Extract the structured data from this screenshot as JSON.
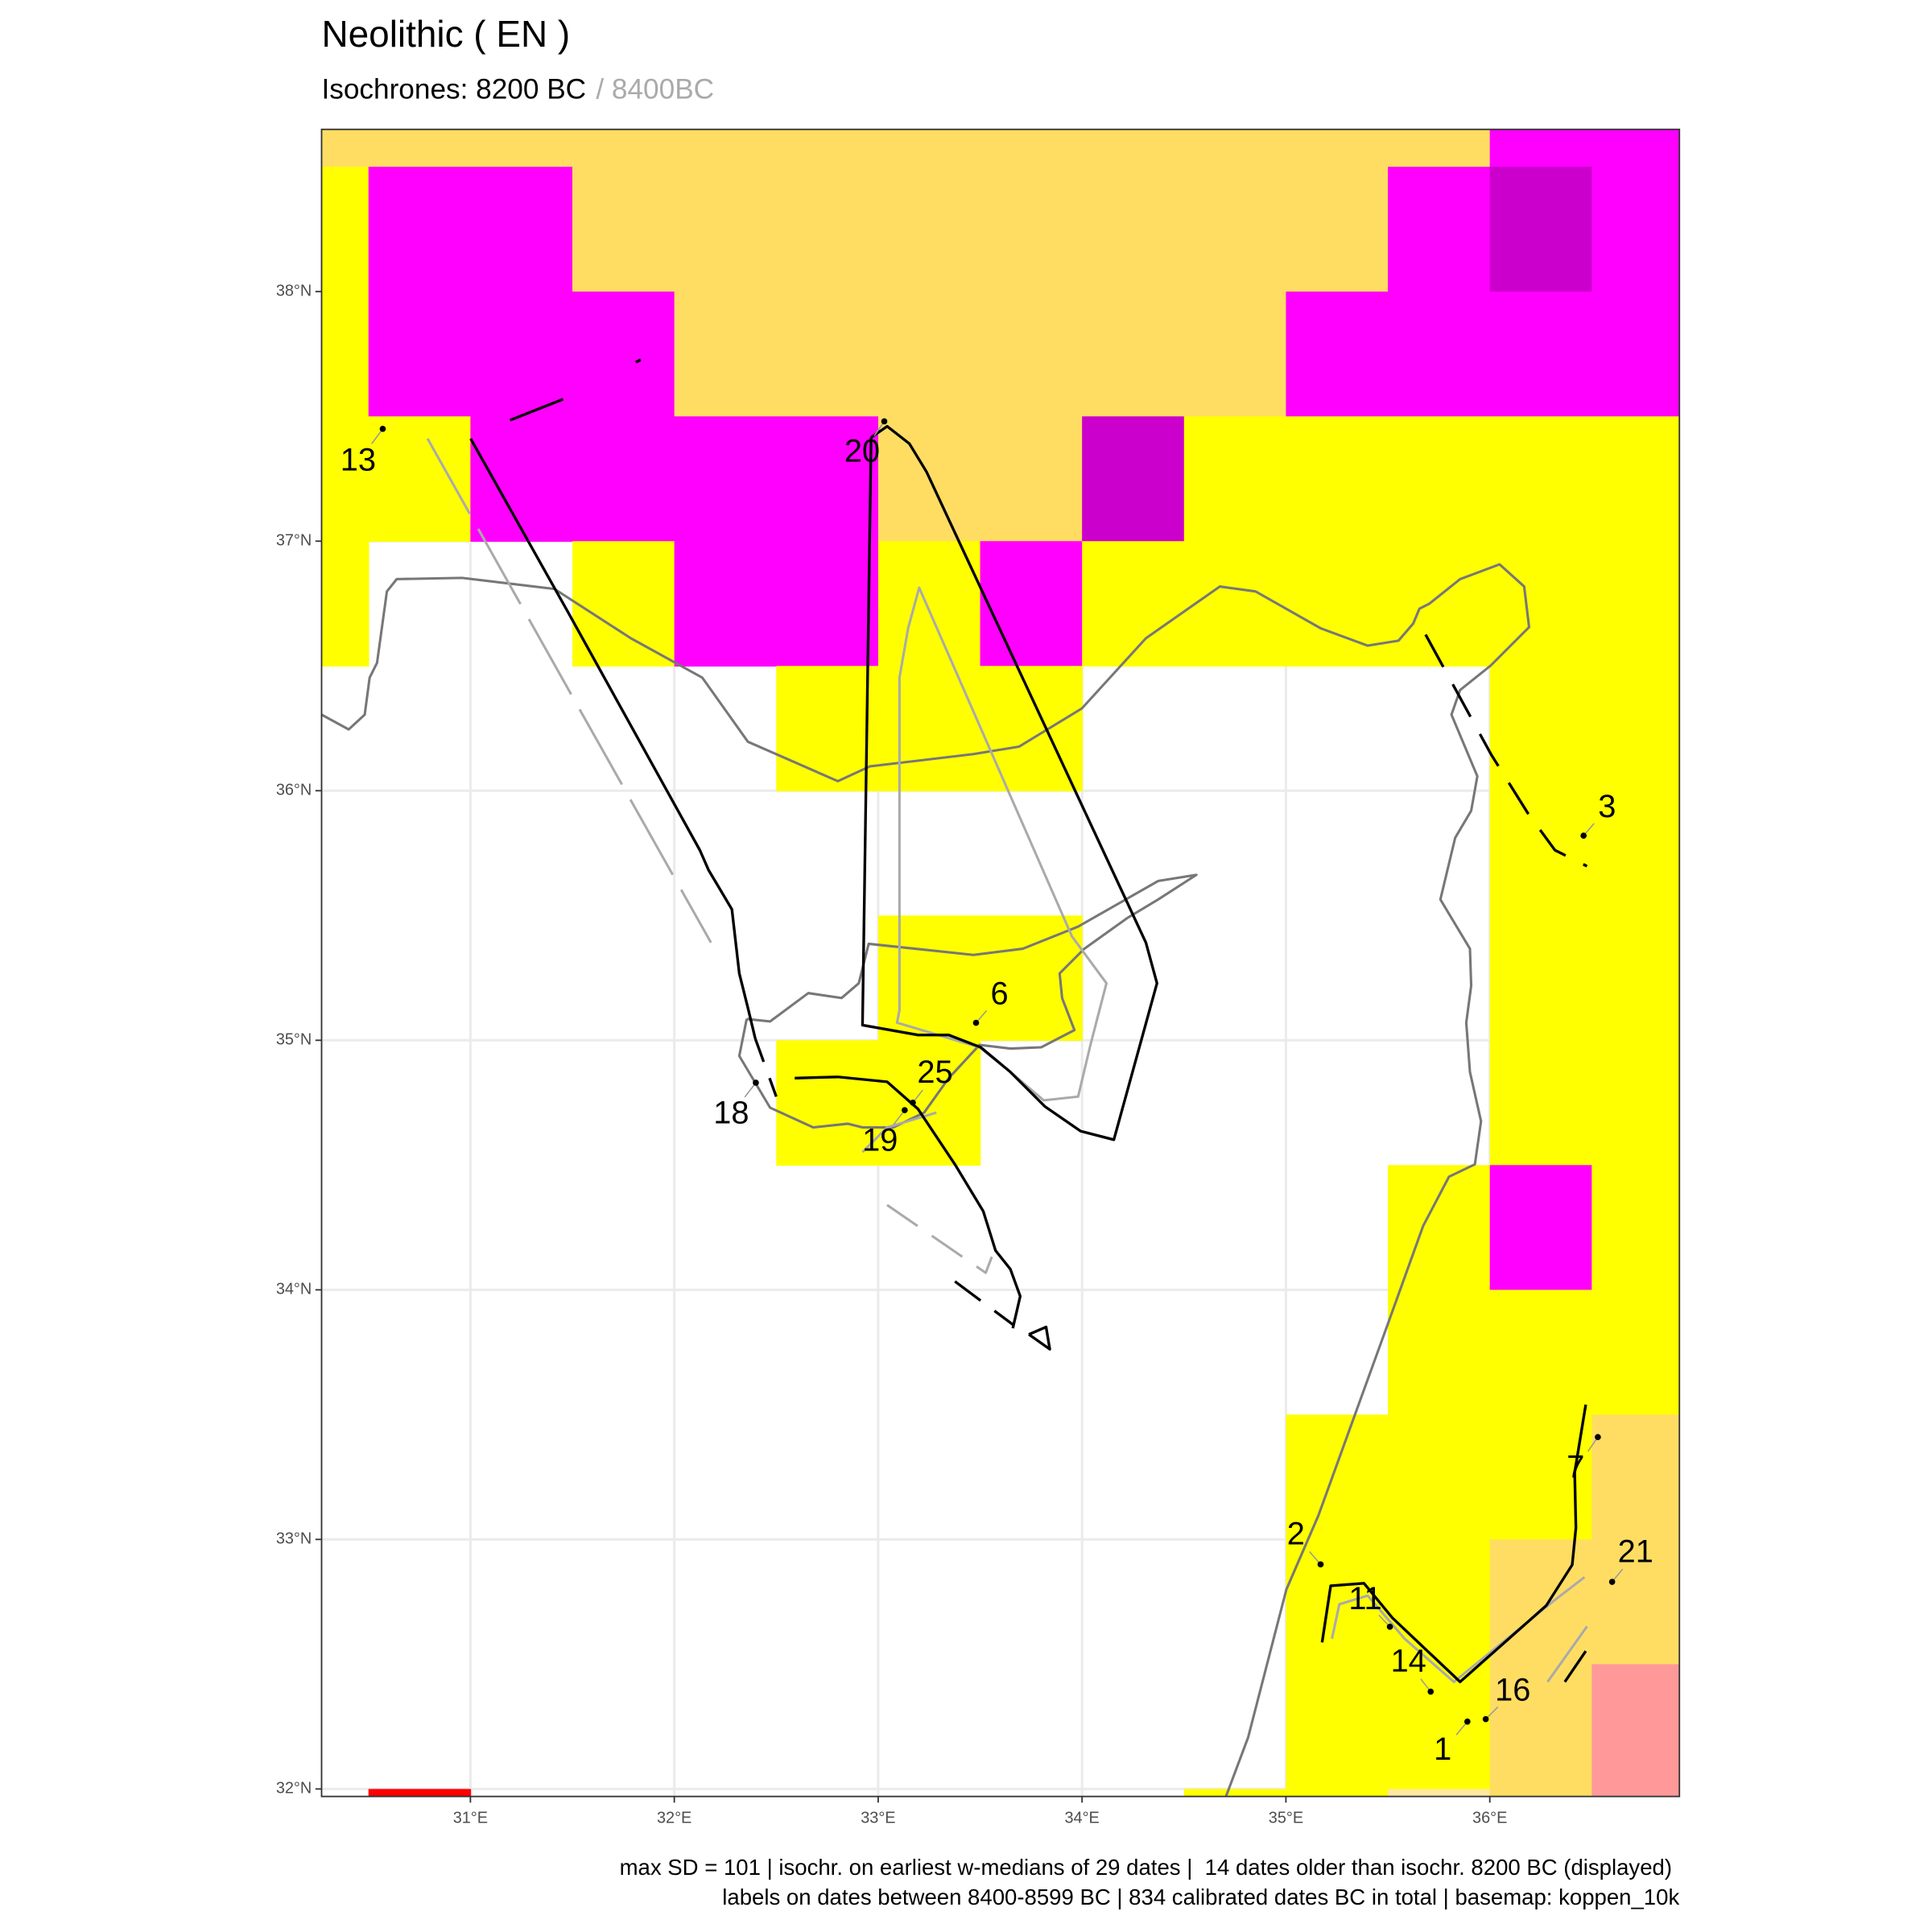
{
  "map": {
    "title": "Neolithic ( EN )",
    "subtitle": "Isochrones: 8200 BC",
    "subtitle_grey": "/ 8400BC",
    "xlim": [
      30.27,
      36.93
    ],
    "ylim": [
      31.97,
      38.65
    ],
    "xticks": [
      {
        "value": 31,
        "label": "31°E"
      },
      {
        "value": 32,
        "label": "32°E"
      },
      {
        "value": 33,
        "label": "33°E"
      },
      {
        "value": 34,
        "label": "34°E"
      },
      {
        "value": 35,
        "label": "35°E"
      },
      {
        "value": 36,
        "label": "36°E"
      }
    ],
    "yticks": [
      {
        "value": 32,
        "label": "32°N"
      },
      {
        "value": 33,
        "label": "33°N"
      },
      {
        "value": 34,
        "label": "34°N"
      },
      {
        "value": 35,
        "label": "35°N"
      },
      {
        "value": 36,
        "label": "36°N"
      },
      {
        "value": 37,
        "label": "37°N"
      },
      {
        "value": 38,
        "label": "38°N"
      }
    ],
    "grid": true,
    "sites": [
      {
        "label": "13",
        "lon": 30.57,
        "lat": 37.45
      },
      {
        "label": "20",
        "lon": 33.03,
        "lat": 37.48
      },
      {
        "label": "3",
        "lon": 36.46,
        "lat": 35.82
      },
      {
        "label": "6",
        "lon": 33.48,
        "lat": 35.07
      },
      {
        "label": "18",
        "lon": 32.4,
        "lat": 34.83
      },
      {
        "label": "25",
        "lon": 33.17,
        "lat": 34.75
      },
      {
        "label": "19",
        "lon": 33.13,
        "lat": 34.72
      },
      {
        "label": "7",
        "lon": 36.53,
        "lat": 33.41
      },
      {
        "label": "2",
        "lon": 35.17,
        "lat": 32.9
      },
      {
        "label": "21",
        "lon": 36.6,
        "lat": 32.83
      },
      {
        "label": "11",
        "lon": 35.51,
        "lat": 32.65
      },
      {
        "label": "14",
        "lon": 35.71,
        "lat": 32.39
      },
      {
        "label": "16",
        "lon": 35.98,
        "lat": 32.28
      },
      {
        "label": "1",
        "lon": 35.89,
        "lat": 32.27
      }
    ],
    "caption": [
      "max SD = 101 | isochr. on earliest w-medians of 29 dates |  14 dates older than isochr. 8200 BC (displayed)",
      "labels on dates between 8400-8599 BC | 834 calibrated dates BC in total | basemap: koppen_10k"
    ]
  }
}
